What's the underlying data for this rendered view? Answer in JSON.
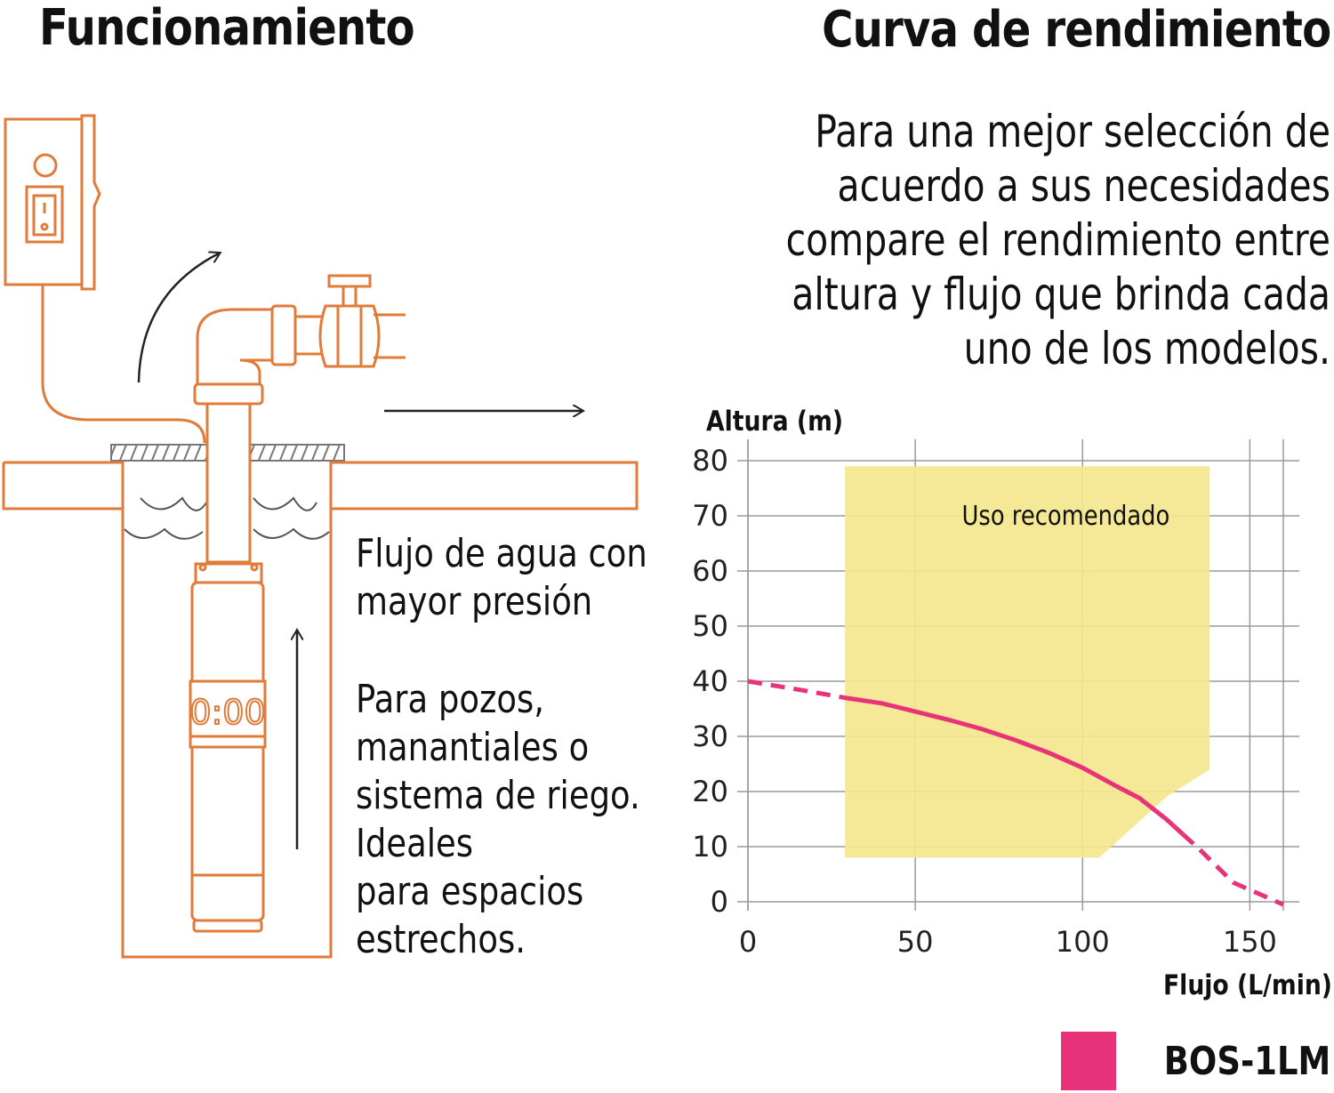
{
  "left": {
    "title": "Funcionamiento",
    "flow_text": [
      "Flujo de agua con",
      "mayor presión"
    ],
    "usage_text": [
      "Para pozos,",
      "manantiales o",
      "sistema de riego.",
      "Ideales",
      "para espacios",
      "estrechos."
    ],
    "timer_display": "0:00",
    "colors": {
      "outline": "#e07b39",
      "water": "#555555",
      "arrow": "#222222"
    },
    "icons": [
      "control-box-icon",
      "power-switch-icon",
      "valve-icon",
      "pipe-elbow-icon",
      "pump-icon"
    ]
  },
  "right": {
    "title": "Curva de rendimiento",
    "intro": [
      "Para una mejor selección de",
      "acuerdo a sus necesidades",
      "compare el rendimiento entre",
      "altura y flujo que brinda cada",
      "uno de los modelos."
    ]
  },
  "chart_data": {
    "type": "line",
    "ylabel": "Altura (m)",
    "xlabel": "Flujo (L/min)",
    "xlim": [
      0,
      160
    ],
    "ylim": [
      0,
      80
    ],
    "xticks": [
      0,
      50,
      100,
      150
    ],
    "yticks": [
      0,
      10,
      20,
      30,
      40,
      50,
      60,
      70,
      80
    ],
    "grid": true,
    "region": {
      "label": "Uso recomendado",
      "color": "#f4e78f",
      "polygon": [
        [
          29,
          79
        ],
        [
          138,
          79
        ],
        [
          138,
          24
        ],
        [
          125,
          19
        ],
        [
          105,
          8
        ],
        [
          29,
          8
        ]
      ]
    },
    "series": [
      {
        "name": "BOS-1LM",
        "color": "#e8337a",
        "points": [
          [
            0,
            40
          ],
          [
            15,
            38.5
          ],
          [
            29,
            37
          ],
          [
            40,
            36
          ],
          [
            50,
            34.5
          ],
          [
            60,
            33
          ],
          [
            70,
            31.3
          ],
          [
            80,
            29.3
          ],
          [
            90,
            27
          ],
          [
            100,
            24.3
          ],
          [
            110,
            21
          ],
          [
            117,
            18.8
          ],
          [
            125,
            15
          ],
          [
            135,
            9.5
          ],
          [
            145,
            3.5
          ],
          [
            160,
            -0.5
          ]
        ],
        "recommended_range": [
          29,
          130
        ]
      }
    ],
    "legend": {
      "placement": "bottom-right"
    }
  }
}
